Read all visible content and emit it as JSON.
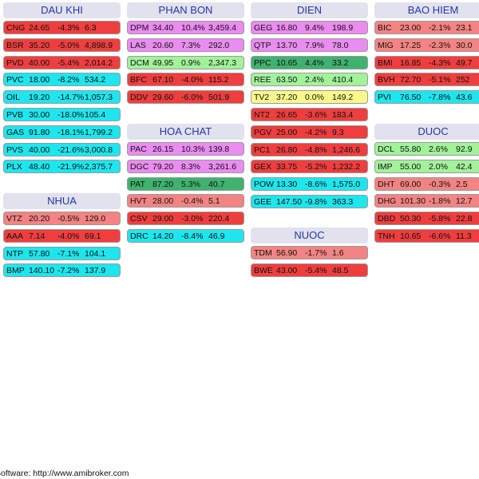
{
  "colors": {
    "red": "#ef3e3e",
    "pink": "#f48383",
    "magenta": "#ea8cf0",
    "cyan": "#1ee6ee",
    "green": "#3fb26f",
    "lgreen": "#a2f29a",
    "yellow": "#fafa8c",
    "header_bg": "#e2e2ee",
    "header_text": "#2235a8"
  },
  "groups": [
    {
      "name": "DAU KHI",
      "rows": [
        {
          "ticker": "CNG",
          "price": "24.65",
          "change": "-4.3%",
          "value": "6.3",
          "color": "red"
        },
        {
          "ticker": "BSR",
          "price": "35.20",
          "change": "-5.0%",
          "value": "4,898.9",
          "color": "red"
        },
        {
          "ticker": "PVD",
          "price": "40.00",
          "change": "-5.4%",
          "value": "2,014.2",
          "color": "red"
        },
        {
          "ticker": "PVC",
          "price": "18.00",
          "change": "-8.2%",
          "value": "534.2",
          "color": "cyan"
        },
        {
          "ticker": "OIL",
          "price": "19.20",
          "change": "-14.7%",
          "value": "1,057.3",
          "color": "cyan"
        },
        {
          "ticker": "PVB",
          "price": "30.00",
          "change": "-18.0%",
          "value": "105.4",
          "color": "cyan"
        },
        {
          "ticker": "GAS",
          "price": "91.80",
          "change": "-18.1%",
          "value": "1,799.2",
          "color": "cyan"
        },
        {
          "ticker": "PVS",
          "price": "40.00",
          "change": "-21.6%",
          "value": "3,000.8",
          "color": "cyan"
        },
        {
          "ticker": "PLX",
          "price": "48.40",
          "change": "-21.9%",
          "value": "2,375.7",
          "color": "cyan"
        }
      ]
    },
    {
      "name": "NHUA",
      "rows": [
        {
          "ticker": "VTZ",
          "price": "20.20",
          "change": "-0.5%",
          "value": "129.0",
          "color": "pink"
        },
        {
          "ticker": "AAA",
          "price": "7.14",
          "change": "-4.0%",
          "value": "69.1",
          "color": "red"
        },
        {
          "ticker": "NTP",
          "price": "57.80",
          "change": "-7.1%",
          "value": "104.1",
          "color": "cyan"
        },
        {
          "ticker": "BMP",
          "price": "140.10",
          "change": "-7.2%",
          "value": "137.9",
          "color": "cyan"
        }
      ]
    },
    {
      "name": "PHAN BON",
      "rows": [
        {
          "ticker": "DPM",
          "price": "34.40",
          "change": "10.4%",
          "value": "3,459.4",
          "color": "magenta"
        },
        {
          "ticker": "LAS",
          "price": "20.60",
          "change": "7.3%",
          "value": "292.0",
          "color": "magenta"
        },
        {
          "ticker": "DCM",
          "price": "49.95",
          "change": "0.9%",
          "value": "2,347.3",
          "color": "lgreen"
        },
        {
          "ticker": "BFC",
          "price": "67.10",
          "change": "-4.0%",
          "value": "115.2",
          "color": "red"
        },
        {
          "ticker": "DDV",
          "price": "29.60",
          "change": "-6.0%",
          "value": "501.9",
          "color": "red"
        }
      ]
    },
    {
      "name": "HOA CHAT",
      "rows": [
        {
          "ticker": "PAC",
          "price": "26.15",
          "change": "10.3%",
          "value": "139.8",
          "color": "magenta"
        },
        {
          "ticker": "DGC",
          "price": "79.20",
          "change": "8.3%",
          "value": "3,261.6",
          "color": "magenta"
        },
        {
          "ticker": "PAT",
          "price": "87.20",
          "change": "5.3%",
          "value": "40.7",
          "color": "green"
        },
        {
          "ticker": "HVT",
          "price": "28.00",
          "change": "-0.4%",
          "value": "5.1",
          "color": "pink"
        },
        {
          "ticker": "CSV",
          "price": "29.00",
          "change": "-3.0%",
          "value": "220.4",
          "color": "red"
        },
        {
          "ticker": "DRC",
          "price": "14.20",
          "change": "-8.4%",
          "value": "46.9",
          "color": "cyan"
        }
      ]
    },
    {
      "name": "DIEN",
      "rows": [
        {
          "ticker": "GEG",
          "price": "16.80",
          "change": "9.4%",
          "value": "198.9",
          "color": "magenta"
        },
        {
          "ticker": "QTP",
          "price": "13.70",
          "change": "7.9%",
          "value": "78.0",
          "color": "magenta"
        },
        {
          "ticker": "PPC",
          "price": "10.65",
          "change": "4.4%",
          "value": "33.2",
          "color": "green"
        },
        {
          "ticker": "REE",
          "price": "63.50",
          "change": "2.4%",
          "value": "410.4",
          "color": "lgreen"
        },
        {
          "ticker": "TV2",
          "price": "37.20",
          "change": "0.0%",
          "value": "149.2",
          "color": "yellow"
        },
        {
          "ticker": "NT2",
          "price": "26.65",
          "change": "-3.6%",
          "value": "183.4",
          "color": "red"
        },
        {
          "ticker": "PGV",
          "price": "25.00",
          "change": "-4.2%",
          "value": "9.3",
          "color": "red"
        },
        {
          "ticker": "PC1",
          "price": "26.80",
          "change": "-4.8%",
          "value": "1,246.6",
          "color": "red"
        },
        {
          "ticker": "GEX",
          "price": "33.75",
          "change": "-5.2%",
          "value": "1,232.2",
          "color": "red"
        },
        {
          "ticker": "POW",
          "price": "13.30",
          "change": "-8.6%",
          "value": "1,575.0",
          "color": "cyan"
        },
        {
          "ticker": "GEE",
          "price": "147.50",
          "change": "-9.8%",
          "value": "363.3",
          "color": "cyan"
        }
      ]
    },
    {
      "name": "NUOC",
      "rows": [
        {
          "ticker": "TDM",
          "price": "56.90",
          "change": "-1.7%",
          "value": "1.6",
          "color": "pink"
        },
        {
          "ticker": "BWE",
          "price": "43.00",
          "change": "-5.4%",
          "value": "48.5",
          "color": "red"
        }
      ]
    },
    {
      "name": "BAO HIEM",
      "rows": [
        {
          "ticker": "BIC",
          "price": "23.00",
          "change": "-2.1%",
          "value": "23.1",
          "color": "pink"
        },
        {
          "ticker": "MIG",
          "price": "17.25",
          "change": "-2.3%",
          "value": "30.0",
          "color": "pink"
        },
        {
          "ticker": "BMI",
          "price": "16.85",
          "change": "-4.3%",
          "value": "49.7",
          "color": "red"
        },
        {
          "ticker": "BVH",
          "price": "72.70",
          "change": "-5.1%",
          "value": "252",
          "color": "red"
        },
        {
          "ticker": "PVI",
          "price": "76.50",
          "change": "-7.8%",
          "value": "43.6",
          "color": "cyan"
        }
      ]
    },
    {
      "name": "DUOC",
      "rows": [
        {
          "ticker": "DCL",
          "price": "55.80",
          "change": "2.6%",
          "value": "92.9",
          "color": "lgreen"
        },
        {
          "ticker": "IMP",
          "price": "55.00",
          "change": "2.0%",
          "value": "42.4",
          "color": "lgreen"
        },
        {
          "ticker": "DHT",
          "price": "69.00",
          "change": "-0.3%",
          "value": "2.5",
          "color": "pink"
        },
        {
          "ticker": "DHG",
          "price": "101.30",
          "change": "-1.8%",
          "value": "12.7",
          "color": "pink"
        },
        {
          "ticker": "DBD",
          "price": "50.30",
          "change": "-5.8%",
          "value": "22.8",
          "color": "red"
        },
        {
          "ticker": "TNH",
          "price": "10.65",
          "change": "-6.6%",
          "value": "11.3",
          "color": "red"
        }
      ]
    }
  ],
  "footer": {
    "text": "Software: http://www.amibroker.com"
  }
}
